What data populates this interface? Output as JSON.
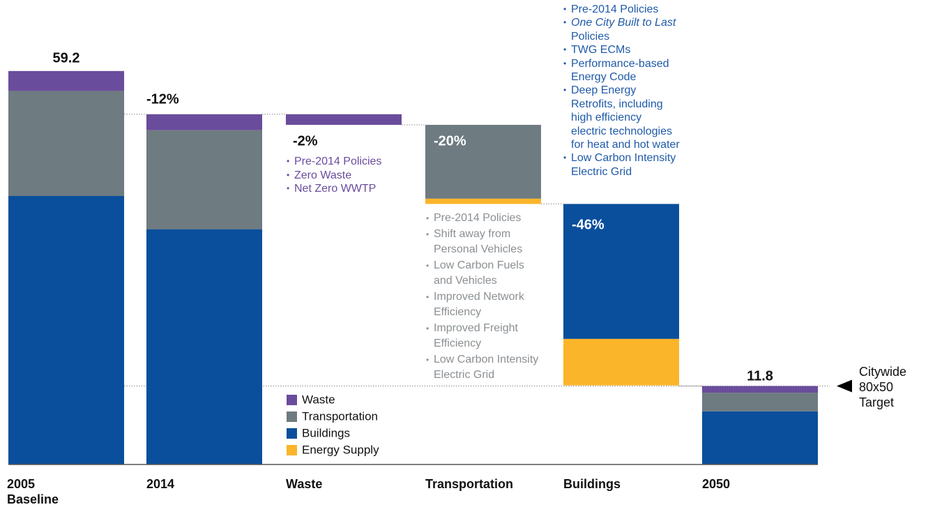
{
  "chart_data": {
    "type": "waterfall",
    "categories": [
      "2005 Baseline",
      "2014",
      "Waste",
      "Transportation",
      "Buildings",
      "2050"
    ],
    "series": [
      {
        "name": "Waste",
        "color": "#6a4c9c",
        "values": [
          3.0,
          2.4,
          1.6,
          null,
          null,
          1.0
        ]
      },
      {
        "name": "Transportation",
        "color": "#6e7b80",
        "values": [
          15.8,
          14.9,
          null,
          11.1,
          null,
          2.8
        ]
      },
      {
        "name": "Buildings",
        "color": "#0a4f9c",
        "values": [
          40.4,
          35.4,
          null,
          null,
          20.3,
          8.0
        ]
      },
      {
        "name": "Energy Supply",
        "color": "#fbb52a",
        "values": [
          null,
          null,
          null,
          0.8,
          7.0,
          null
        ]
      }
    ],
    "bar_labels": [
      "59.2",
      "-12%",
      "-2%",
      "-20%",
      "-46%",
      "11.8"
    ],
    "target_label": "Citywide 80x50 Target",
    "measure_lists": {
      "waste": {
        "color": "#6a4c9c",
        "items": [
          [
            "Pre-2014 Policies"
          ],
          [
            "Zero Waste"
          ],
          [
            "Net Zero WWTP"
          ]
        ]
      },
      "transportation": {
        "color": "#8a8f93",
        "items": [
          [
            "Pre-2014 Policies"
          ],
          [
            "Shift away from",
            "Personal Vehicles"
          ],
          [
            "Low Carbon Fuels",
            "and Vehicles"
          ],
          [
            "Improved Network",
            "Efficiency"
          ],
          [
            "Improved Freight",
            "Efficiency"
          ],
          [
            "Low Carbon Intensity",
            "Electric Grid"
          ]
        ]
      },
      "buildings": {
        "color": "#1f5aa8",
        "items": [
          [
            "Pre-2014 Policies"
          ],
          [
            "One City Built to Last",
            "Policies"
          ],
          [
            "TWG ECMs"
          ],
          [
            "Performance-based",
            "Energy Code"
          ],
          [
            "Deep Energy",
            "Retrofits, including",
            "high efficiency",
            "electric technologies",
            "for heat and hot water"
          ],
          [
            "Low Carbon Intensity",
            "Electric Grid"
          ]
        ]
      }
    }
  }
}
